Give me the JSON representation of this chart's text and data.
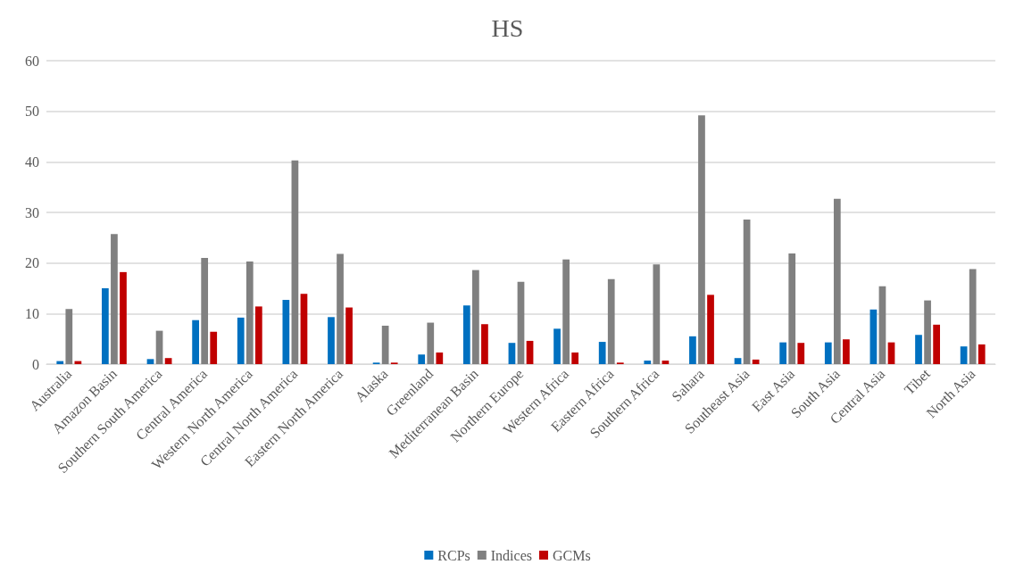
{
  "chart_data": {
    "type": "bar",
    "title": "HS",
    "categories": [
      "Australia",
      "Amazon Basin",
      "Southern South America",
      "Central America",
      "Western North America",
      "Central North America",
      "Eastern North America",
      "Alaska",
      "Greenland",
      "Mediterranean Basin",
      "Northern Europe",
      "Western Africa",
      "Eastern Africa",
      "Southern Africa",
      "Sahara",
      "Southeast Asia",
      "East Asia",
      "South Asia",
      "Central Asia",
      "Tibet",
      "North Asia"
    ],
    "series": [
      {
        "name": "RCPs",
        "color": "#0070c0",
        "values": [
          0.6,
          15,
          1.0,
          8.7,
          9.2,
          12.7,
          9.3,
          0.3,
          1.9,
          11.6,
          4.2,
          7.0,
          4.4,
          0.7,
          5.5,
          1.2,
          4.3,
          4.3,
          10.8,
          5.8,
          3.5
        ]
      },
      {
        "name": "Indices",
        "color": "#808080",
        "values": [
          10.9,
          25.7,
          6.6,
          21.0,
          20.3,
          40.3,
          21.8,
          7.6,
          8.2,
          18.6,
          16.3,
          20.7,
          16.8,
          19.7,
          49.2,
          28.6,
          21.9,
          32.7,
          15.4,
          12.6,
          18.8
        ]
      },
      {
        "name": "GCMs",
        "color": "#c00000",
        "values": [
          0.6,
          18.2,
          1.2,
          6.4,
          11.4,
          13.9,
          11.2,
          0.3,
          2.3,
          7.9,
          4.6,
          2.3,
          0.3,
          0.7,
          13.7,
          0.9,
          4.2,
          4.9,
          4.3,
          7.8,
          3.9
        ]
      }
    ],
    "ylim": [
      0,
      60
    ],
    "yticks": [
      0,
      10,
      20,
      30,
      40,
      50,
      60
    ],
    "grid": "y",
    "legend": "bottom"
  }
}
